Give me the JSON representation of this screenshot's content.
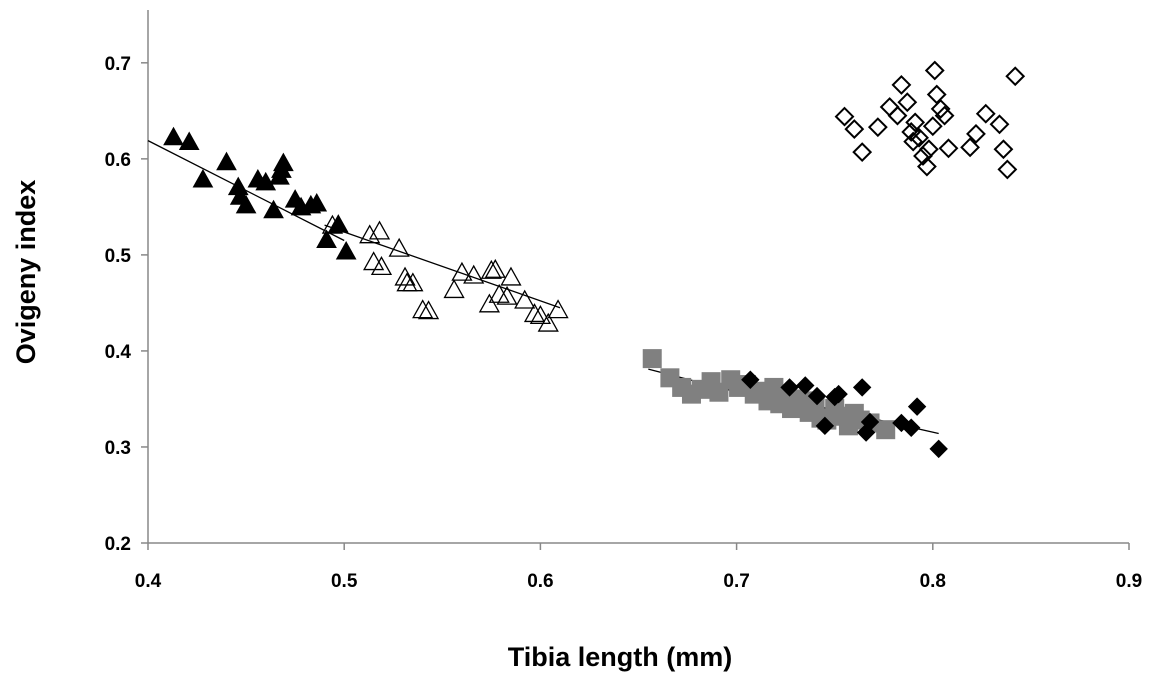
{
  "chart_data": {
    "type": "scatter",
    "xlabel": "Tibia length (mm)",
    "ylabel": "Ovigeny index",
    "xlim": [
      0.4,
      0.9
    ],
    "ylim": [
      0.2,
      0.75
    ],
    "x_ticks": [
      "0.4",
      "0.5",
      "0.6",
      "0.7",
      "0.8",
      "0.9"
    ],
    "y_ticks": [
      "0.2",
      "0.3",
      "0.4",
      "0.5",
      "0.6",
      "0.7"
    ],
    "grid": false,
    "legend": "none",
    "series": [
      {
        "marker": "filled-triangle",
        "color": "#000000",
        "points": [
          [
            0.413,
            0.622
          ],
          [
            0.421,
            0.617
          ],
          [
            0.428,
            0.578
          ],
          [
            0.44,
            0.596
          ],
          [
            0.446,
            0.57
          ],
          [
            0.447,
            0.56
          ],
          [
            0.45,
            0.551
          ],
          [
            0.456,
            0.578
          ],
          [
            0.46,
            0.575
          ],
          [
            0.464,
            0.546
          ],
          [
            0.468,
            0.588
          ],
          [
            0.469,
            0.595
          ],
          [
            0.475,
            0.557
          ],
          [
            0.478,
            0.549
          ],
          [
            0.483,
            0.551
          ],
          [
            0.486,
            0.553
          ],
          [
            0.491,
            0.515
          ],
          [
            0.497,
            0.531
          ],
          [
            0.501,
            0.503
          ],
          [
            0.467,
            0.581
          ]
        ],
        "trendline": [
          [
            0.4,
            0.619
          ],
          [
            0.5,
            0.515
          ]
        ]
      },
      {
        "marker": "open-triangle",
        "color": "#000000",
        "points": [
          [
            0.494,
            0.53
          ],
          [
            0.513,
            0.52
          ],
          [
            0.515,
            0.492
          ],
          [
            0.518,
            0.524
          ],
          [
            0.519,
            0.487
          ],
          [
            0.528,
            0.506
          ],
          [
            0.531,
            0.476
          ],
          [
            0.532,
            0.47
          ],
          [
            0.535,
            0.47
          ],
          [
            0.54,
            0.442
          ],
          [
            0.543,
            0.441
          ],
          [
            0.556,
            0.463
          ],
          [
            0.56,
            0.481
          ],
          [
            0.566,
            0.478
          ],
          [
            0.574,
            0.448
          ],
          [
            0.575,
            0.483
          ],
          [
            0.577,
            0.484
          ],
          [
            0.579,
            0.458
          ],
          [
            0.583,
            0.456
          ],
          [
            0.585,
            0.476
          ],
          [
            0.592,
            0.452
          ],
          [
            0.597,
            0.438
          ],
          [
            0.6,
            0.436
          ],
          [
            0.604,
            0.428
          ],
          [
            0.609,
            0.442
          ]
        ],
        "trendline": [
          [
            0.49,
            0.531
          ],
          [
            0.61,
            0.445
          ]
        ]
      },
      {
        "marker": "filled-square",
        "color": "#808080",
        "points": [
          [
            0.657,
            0.392
          ],
          [
            0.666,
            0.372
          ],
          [
            0.672,
            0.362
          ],
          [
            0.677,
            0.355
          ],
          [
            0.682,
            0.36
          ],
          [
            0.687,
            0.368
          ],
          [
            0.691,
            0.357
          ],
          [
            0.697,
            0.37
          ],
          [
            0.701,
            0.362
          ],
          [
            0.705,
            0.365
          ],
          [
            0.709,
            0.355
          ],
          [
            0.712,
            0.358
          ],
          [
            0.716,
            0.348
          ],
          [
            0.719,
            0.362
          ],
          [
            0.722,
            0.345
          ],
          [
            0.724,
            0.355
          ],
          [
            0.728,
            0.34
          ],
          [
            0.731,
            0.35
          ],
          [
            0.734,
            0.348
          ],
          [
            0.737,
            0.336
          ],
          [
            0.74,
            0.342
          ],
          [
            0.743,
            0.33
          ],
          [
            0.746,
            0.328
          ],
          [
            0.75,
            0.34
          ],
          [
            0.753,
            0.332
          ],
          [
            0.757,
            0.322
          ],
          [
            0.76,
            0.335
          ],
          [
            0.763,
            0.328
          ],
          [
            0.768,
            0.325
          ],
          [
            0.776,
            0.318
          ]
        ],
        "trendline": [
          [
            0.655,
            0.381
          ],
          [
            0.775,
            0.318
          ]
        ]
      },
      {
        "marker": "filled-diamond",
        "color": "#000000",
        "points": [
          [
            0.707,
            0.37
          ],
          [
            0.727,
            0.362
          ],
          [
            0.735,
            0.364
          ],
          [
            0.741,
            0.353
          ],
          [
            0.745,
            0.322
          ],
          [
            0.75,
            0.352
          ],
          [
            0.752,
            0.355
          ],
          [
            0.764,
            0.362
          ],
          [
            0.766,
            0.315
          ],
          [
            0.768,
            0.326
          ],
          [
            0.784,
            0.325
          ],
          [
            0.789,
            0.32
          ],
          [
            0.792,
            0.342
          ],
          [
            0.803,
            0.298
          ]
        ],
        "trendline": [
          [
            0.705,
            0.359
          ],
          [
            0.803,
            0.314
          ]
        ]
      },
      {
        "marker": "open-diamond",
        "color": "#000000",
        "points": [
          [
            0.755,
            0.644
          ],
          [
            0.76,
            0.631
          ],
          [
            0.764,
            0.607
          ],
          [
            0.772,
            0.633
          ],
          [
            0.778,
            0.654
          ],
          [
            0.782,
            0.645
          ],
          [
            0.784,
            0.677
          ],
          [
            0.787,
            0.659
          ],
          [
            0.789,
            0.628
          ],
          [
            0.79,
            0.618
          ],
          [
            0.791,
            0.638
          ],
          [
            0.793,
            0.622
          ],
          [
            0.795,
            0.603
          ],
          [
            0.797,
            0.592
          ],
          [
            0.798,
            0.61
          ],
          [
            0.8,
            0.634
          ],
          [
            0.801,
            0.692
          ],
          [
            0.802,
            0.667
          ],
          [
            0.804,
            0.652
          ],
          [
            0.806,
            0.645
          ],
          [
            0.808,
            0.611
          ],
          [
            0.819,
            0.612
          ],
          [
            0.822,
            0.626
          ],
          [
            0.827,
            0.647
          ],
          [
            0.834,
            0.636
          ],
          [
            0.836,
            0.61
          ],
          [
            0.838,
            0.589
          ],
          [
            0.842,
            0.686
          ]
        ]
      }
    ]
  }
}
